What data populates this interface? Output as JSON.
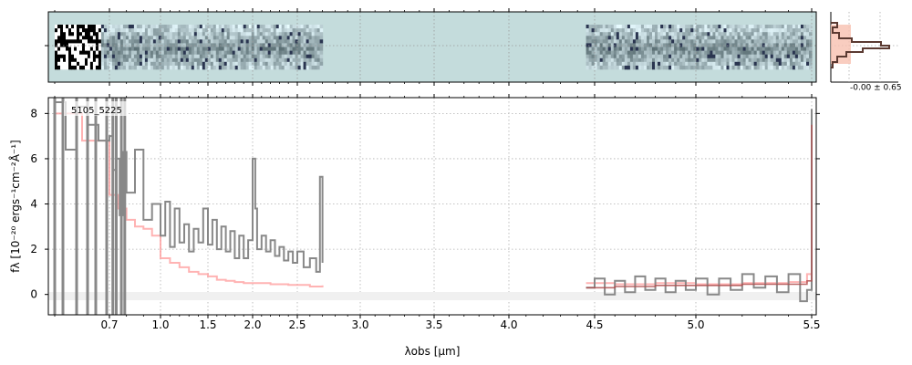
{
  "figure": {
    "spectrum_id": "5105_5225",
    "side_panel_label": "-0.00 ± 0.65"
  },
  "chart_data": [
    {
      "type": "heatmap",
      "panel": "2d-spectrum",
      "colormap": "bone_r",
      "background_color": "#c4dcdc",
      "segments": [
        {
          "x_start": 0.6,
          "x_end": 2.7
        },
        {
          "x_start": 4.45,
          "x_end": 5.5
        }
      ],
      "grid": true
    },
    {
      "type": "line",
      "panel": "1d-spectrum",
      "xlabel": "λobs [μm]",
      "ylabel": "fλ [10⁻²⁰ ergs⁻¹cm⁻²Å⁻¹]",
      "x_scale": "nonlinear",
      "x_ticks": [
        0.7,
        1.0,
        1.5,
        2.0,
        2.5,
        3.0,
        3.5,
        4.0,
        4.5,
        5.0,
        5.5
      ],
      "x_tick_labels": [
        "0.7",
        "1.0",
        "1.5",
        "2.0",
        "2.5",
        "3.0",
        "3.5",
        "4.0",
        "4.5",
        "5.0",
        "5.5"
      ],
      "y_ticks": [
        0,
        2,
        4,
        6,
        8
      ],
      "ylim": [
        -0.9,
        8.7
      ],
      "grid": true,
      "colors": {
        "flux": "#888888",
        "error": "#ff9999",
        "model": "#b05050"
      },
      "series": [
        {
          "role": "flux",
          "x": [
            0.6,
            0.62,
            0.64,
            0.66,
            0.68,
            0.7,
            0.72,
            0.74,
            0.76,
            0.78,
            0.8,
            0.85,
            0.9,
            0.95,
            1.0,
            1.05,
            1.1,
            1.15,
            1.2,
            1.25,
            1.3,
            1.35,
            1.4,
            1.45,
            1.5,
            1.55,
            1.6,
            1.65,
            1.7,
            1.75,
            1.8,
            1.85,
            1.9,
            1.95,
            2.0,
            2.03,
            2.05,
            2.1,
            2.15,
            2.2,
            2.25,
            2.3,
            2.35,
            2.4,
            2.45,
            2.5,
            2.55,
            2.6,
            2.65,
            2.68,
            2.7,
            4.45,
            4.5,
            4.55,
            4.6,
            4.65,
            4.7,
            4.75,
            4.8,
            4.85,
            4.9,
            4.95,
            5.0,
            5.05,
            5.1,
            5.15,
            5.2,
            5.25,
            5.3,
            5.35,
            5.4,
            5.45,
            5.48,
            5.5
          ],
          "values": [
            8.5,
            6.4,
            8.3,
            7.5,
            6.8,
            7.0,
            5.5,
            6.0,
            3.5,
            6.3,
            4.5,
            6.4,
            3.3,
            4.0,
            2.6,
            4.1,
            2.1,
            3.8,
            2.3,
            3.1,
            1.9,
            2.9,
            2.3,
            3.8,
            2.2,
            3.3,
            2.0,
            3.0,
            1.9,
            2.8,
            1.6,
            2.6,
            1.6,
            2.4,
            6.0,
            3.8,
            2.0,
            2.6,
            1.9,
            2.4,
            1.7,
            2.1,
            1.5,
            1.9,
            1.4,
            1.9,
            1.2,
            1.6,
            1.0,
            5.2,
            1.4,
            0.3,
            0.7,
            0.0,
            0.6,
            0.1,
            0.8,
            0.2,
            0.7,
            0.1,
            0.6,
            0.2,
            0.7,
            0.0,
            0.7,
            0.2,
            0.9,
            0.3,
            0.8,
            0.1,
            0.9,
            -0.3,
            0.2,
            8.2
          ]
        },
        {
          "role": "error",
          "x": [
            0.6,
            0.65,
            0.7,
            0.75,
            0.8,
            0.85,
            0.9,
            0.95,
            1.0,
            1.1,
            1.2,
            1.3,
            1.4,
            1.5,
            1.6,
            1.7,
            1.8,
            1.9,
            2.0,
            2.2,
            2.4,
            2.6,
            2.7,
            4.45,
            4.6,
            4.8,
            5.0,
            5.2,
            5.4,
            5.48,
            5.5
          ],
          "values": [
            8.0,
            6.8,
            4.4,
            3.8,
            3.3,
            3.0,
            2.9,
            2.6,
            1.6,
            1.4,
            1.2,
            1.0,
            0.9,
            0.8,
            0.65,
            0.6,
            0.55,
            0.5,
            0.5,
            0.45,
            0.42,
            0.35,
            0.4,
            0.5,
            0.45,
            0.5,
            0.45,
            0.5,
            0.55,
            0.9,
            1.5
          ]
        },
        {
          "role": "model",
          "x": [
            4.45,
            4.6,
            4.8,
            5.0,
            5.2,
            5.4,
            5.48,
            5.5
          ],
          "values": [
            0.3,
            0.35,
            0.4,
            0.4,
            0.45,
            0.45,
            0.6,
            7.5
          ]
        }
      ]
    }
  ]
}
